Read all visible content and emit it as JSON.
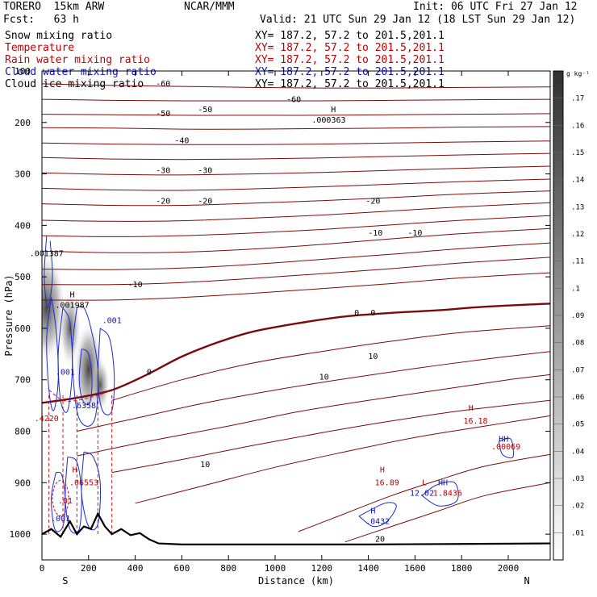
{
  "header": {
    "left_line1": "TORERO  15km ARW",
    "center_line1": "NCAR/MMM",
    "right_line1": "Init: 06 UTC Fri 27 Jan 12",
    "left_line2": "Fcst:   63 h",
    "right_line2": "Valid: 21 UTC Sun 29 Jan 12 (18 LST Sun 29 Jan 12)"
  },
  "fields": [
    {
      "name": "Snow mixing ratio",
      "xy": "XY= 187.2, 57.2 to 201.5,201.1",
      "color": "#000000"
    },
    {
      "name": "Temperature",
      "xy": "XY= 187.2, 57.2 to 201.5,201.1",
      "color": "#c00000"
    },
    {
      "name": "Rain water mixing ratio",
      "xy": "XY= 187.2, 57.2 to 201.5,201.1",
      "color": "#c00000"
    },
    {
      "name": "Cloud water mixing ratio",
      "xy": "XY= 187.2, 57.2 to 201.5,201.1",
      "color": "#1010c0"
    },
    {
      "name": "Cloud ice mixing ratio",
      "xy": "XY= 187.2, 57.2 to 201.5,201.1",
      "color": "#000000"
    }
  ],
  "chart_data": {
    "type": "heatmap",
    "xlabel": "Distance (km)",
    "ylabel": "Pressure (hPa)",
    "xlim": [
      0,
      2180
    ],
    "ylim": [
      1050,
      100
    ],
    "x_ticks": [
      0,
      200,
      400,
      600,
      800,
      1000,
      1200,
      1400,
      1600,
      1800,
      2000
    ],
    "y_ticks": [
      100,
      200,
      300,
      400,
      500,
      600,
      700,
      800,
      900,
      1000
    ],
    "end_labels": {
      "left": "S",
      "right": "N"
    },
    "colorbar": {
      "unit": "g kg⁻¹",
      "ticks": [
        ".01",
        ".02",
        ".03",
        ".04",
        ".05",
        ".06",
        ".07",
        ".08",
        ".09",
        ".1",
        ".11",
        ".12",
        ".13",
        ".14",
        ".15",
        ".16",
        ".17"
      ]
    },
    "temperature_contours": [
      {
        "level": "-60",
        "x": [
          0,
          300,
          600,
          900,
          1200,
          1500,
          1800,
          2180
        ],
        "y": [
          125,
          128,
          130,
          132,
          133,
          133,
          132,
          131
        ]
      },
      {
        "level": "-60",
        "x": [
          0,
          300,
          600,
          900,
          1200,
          1500,
          1800,
          2180
        ],
        "y": [
          155,
          157,
          158,
          158,
          158,
          157,
          156,
          155
        ]
      },
      {
        "level": "-50",
        "x": [
          0,
          300,
          600,
          900,
          1200,
          1500,
          1800,
          2180
        ],
        "y": [
          184,
          185,
          186,
          186,
          186,
          185,
          184,
          183
        ]
      },
      {
        "level": "-50",
        "x": [
          0,
          300,
          600,
          900,
          1200,
          1500,
          1800,
          2180
        ],
        "y": [
          210,
          211,
          213,
          213,
          212,
          211,
          209,
          208
        ]
      },
      {
        "level": "-40",
        "x": [
          0,
          300,
          600,
          900,
          1200,
          1500,
          1800,
          2180
        ],
        "y": [
          240,
          242,
          243,
          243,
          242,
          240,
          238,
          236
        ]
      },
      {
        "level": "-40",
        "x": [
          0,
          300,
          600,
          900,
          1200,
          1500,
          1800,
          2180
        ],
        "y": [
          268,
          271,
          272,
          271,
          269,
          266,
          263,
          260
        ]
      },
      {
        "level": "-30",
        "x": [
          0,
          300,
          600,
          900,
          1200,
          1500,
          1800,
          2180
        ],
        "y": [
          298,
          301,
          302,
          300,
          297,
          293,
          289,
          285
        ]
      },
      {
        "level": "-30",
        "x": [
          0,
          300,
          600,
          900,
          1200,
          1500,
          1800,
          2180
        ],
        "y": [
          328,
          331,
          332,
          329,
          325,
          320,
          315,
          310
        ]
      },
      {
        "level": "-20",
        "x": [
          0,
          300,
          600,
          900,
          1200,
          1500,
          1800,
          2180
        ],
        "y": [
          358,
          361,
          361,
          357,
          352,
          346,
          339,
          333
        ]
      },
      {
        "level": "-20",
        "x": [
          0,
          300,
          600,
          900,
          1200,
          1500,
          1800,
          2180
        ],
        "y": [
          390,
          392,
          391,
          386,
          380,
          372,
          364,
          356
        ]
      },
      {
        "level": "-10",
        "x": [
          0,
          300,
          600,
          900,
          1200,
          1500,
          1800,
          2180
        ],
        "y": [
          420,
          422,
          420,
          415,
          408,
          399,
          390,
          381
        ]
      },
      {
        "level": "-10",
        "x": [
          0,
          300,
          600,
          900,
          1200,
          1500,
          1800,
          2180
        ],
        "y": [
          450,
          453,
          452,
          446,
          437,
          426,
          416,
          406
        ]
      },
      {
        "level": "-10",
        "x": [
          0,
          300,
          600,
          900,
          1200,
          1500,
          1800,
          2180
        ],
        "y": [
          485,
          486,
          483,
          476,
          466,
          456,
          445,
          434
        ]
      },
      {
        "level": "-10",
        "x": [
          0,
          300,
          600,
          900,
          1200,
          1500,
          1800,
          2180
        ],
        "y": [
          515,
          515,
          511,
          503,
          494,
          484,
          473,
          462
        ]
      },
      {
        "level": "-5",
        "x": [
          0,
          300,
          600,
          900,
          1200,
          1500,
          1800,
          2180
        ],
        "y": [
          545,
          545,
          540,
          532,
          523,
          513,
          502,
          492
        ]
      },
      {
        "level": "0",
        "x": [
          0,
          150,
          300,
          450,
          600,
          750,
          900,
          1100,
          1300,
          1500,
          1700,
          1900,
          2180
        ],
        "y": [
          745,
          735,
          720,
          690,
          655,
          628,
          607,
          590,
          577,
          570,
          565,
          558,
          552
        ]
      },
      {
        "level": "5",
        "x": [
          300,
          600,
          900,
          1200,
          1500,
          1800,
          2180
        ],
        "y": [
          740,
          700,
          668,
          645,
          625,
          608,
          595
        ]
      },
      {
        "level": "10",
        "x": [
          150,
          400,
          700,
          1000,
          1300,
          1600,
          1900,
          2180
        ],
        "y": [
          800,
          775,
          745,
          720,
          698,
          678,
          660,
          645
        ]
      },
      {
        "level": "10",
        "x": [
          150,
          450,
          800,
          1100,
          1400,
          1700,
          2000,
          2180
        ],
        "y": [
          848,
          820,
          790,
          762,
          740,
          720,
          700,
          690
        ]
      },
      {
        "level": "15",
        "x": [
          300,
          600,
          900,
          1200,
          1500,
          1800,
          2180
        ],
        "y": [
          880,
          855,
          828,
          803,
          780,
          760,
          740
        ]
      },
      {
        "level": "15",
        "x": [
          400,
          700,
          1000,
          1300,
          1600,
          1900,
          2180
        ],
        "y": [
          940,
          905,
          870,
          840,
          812,
          790,
          770
        ]
      },
      {
        "level": "20",
        "x": [
          1100,
          1300,
          1500,
          1700,
          1900,
          2180
        ],
        "y": [
          995,
          960,
          925,
          895,
          868,
          845
        ]
      },
      {
        "level": "20",
        "x": [
          1300,
          1500,
          1700,
          1900,
          2180
        ],
        "y": [
          1015,
          985,
          955,
          925,
          900
        ]
      }
    ],
    "terrain": {
      "x": [
        0,
        40,
        80,
        120,
        150,
        180,
        210,
        240,
        270,
        300,
        340,
        380,
        420,
        460,
        500,
        600,
        800,
        1000,
        1400,
        1800,
        2180
      ],
      "y": [
        1000,
        990,
        1005,
        975,
        1000,
        985,
        990,
        960,
        985,
        1000,
        990,
        1002,
        998,
        1010,
        1018,
        1020,
        1020,
        1020,
        1020,
        1019,
        1018
      ]
    },
    "annotations": [
      {
        "text": "-60",
        "x": 520,
        "y": 130,
        "color": "#000000"
      },
      {
        "text": "-60",
        "x": 1080,
        "y": 160,
        "color": "#000000"
      },
      {
        "text": "-50",
        "x": 520,
        "y": 188,
        "color": "#000000"
      },
      {
        "text": "-50",
        "x": 700,
        "y": 180,
        "color": "#000000"
      },
      {
        "text": "-40",
        "x": 600,
        "y": 240,
        "color": "#000000"
      },
      {
        "text": "-30",
        "x": 520,
        "y": 298,
        "color": "#000000"
      },
      {
        "text": "-30",
        "x": 700,
        "y": 298,
        "color": "#000000"
      },
      {
        "text": "-20",
        "x": 520,
        "y": 358,
        "color": "#000000"
      },
      {
        "text": "-20",
        "x": 700,
        "y": 358,
        "color": "#000000"
      },
      {
        "text": "-20",
        "x": 1420,
        "y": 358,
        "color": "#000000"
      },
      {
        "text": "-10",
        "x": 1430,
        "y": 420,
        "color": "#000000"
      },
      {
        "text": "-10",
        "x": 1600,
        "y": 420,
        "color": "#000000"
      },
      {
        "text": "-10",
        "x": 400,
        "y": 520,
        "color": "#000000"
      },
      {
        "text": "0",
        "x": 1350,
        "y": 575,
        "color": "#000000"
      },
      {
        "text": "0",
        "x": 1420,
        "y": 575,
        "color": "#000000"
      },
      {
        "text": "0",
        "x": 460,
        "y": 690,
        "color": "#000000"
      },
      {
        "text": "10",
        "x": 1210,
        "y": 700,
        "color": "#000000"
      },
      {
        "text": "10",
        "x": 1420,
        "y": 660,
        "color": "#000000"
      },
      {
        "text": "10",
        "x": 700,
        "y": 870,
        "color": "#000000"
      },
      {
        "text": "20",
        "x": 1450,
        "y": 1015,
        "color": "#000000"
      },
      {
        "text": "H",
        "x": 1250,
        "y": 180,
        "color": "#000000"
      },
      {
        "text": ".000363",
        "x": 1230,
        "y": 200,
        "color": "#000000"
      },
      {
        "text": ".001387",
        "x": 20,
        "y": 460,
        "color": "#000000"
      },
      {
        "text": "H",
        "x": 130,
        "y": 540,
        "color": "#000000"
      },
      {
        "text": ".001987",
        "x": 130,
        "y": 560,
        "color": "#000000"
      },
      {
        "text": ".001",
        "x": 300,
        "y": 590,
        "color": "#1010c0"
      },
      {
        "text": ".001",
        "x": 100,
        "y": 690,
        "color": "#1010c0"
      },
      {
        "text": ".6358",
        "x": 180,
        "y": 755,
        "color": "#1010c0"
      },
      {
        "text": ".4220",
        "x": 20,
        "y": 780,
        "color": "#c00000"
      },
      {
        "text": "H",
        "x": 140,
        "y": 880,
        "color": "#c00000"
      },
      {
        "text": ".06553",
        "x": 180,
        "y": 905,
        "color": "#c00000"
      },
      {
        "text": ".01",
        "x": 100,
        "y": 940,
        "color": "#c00000"
      },
      {
        "text": ".001",
        "x": 80,
        "y": 975,
        "color": "#1010c0"
      },
      {
        "text": "H",
        "x": 1840,
        "y": 760,
        "color": "#c00000"
      },
      {
        "text": "16.18",
        "x": 1860,
        "y": 785,
        "color": "#c00000"
      },
      {
        "text": "HH",
        "x": 1980,
        "y": 820,
        "color": "#1010c0"
      },
      {
        "text": ".00069",
        "x": 1990,
        "y": 835,
        "color": "#c00000"
      },
      {
        "text": "H",
        "x": 1460,
        "y": 880,
        "color": "#c00000"
      },
      {
        "text": "16.89",
        "x": 1480,
        "y": 905,
        "color": "#c00000"
      },
      {
        "text": "L",
        "x": 1640,
        "y": 905,
        "color": "#c00000"
      },
      {
        "text": "HH",
        "x": 1720,
        "y": 905,
        "color": "#1010c0"
      },
      {
        "text": "12.02",
        "x": 1630,
        "y": 925,
        "color": "#1010c0"
      },
      {
        "text": "1.8436",
        "x": 1740,
        "y": 925,
        "color": "#c00000"
      },
      {
        "text": "H",
        "x": 1420,
        "y": 960,
        "color": "#1010c0"
      },
      {
        "text": ".0432",
        "x": 1440,
        "y": 980,
        "color": "#1010c0"
      }
    ]
  }
}
